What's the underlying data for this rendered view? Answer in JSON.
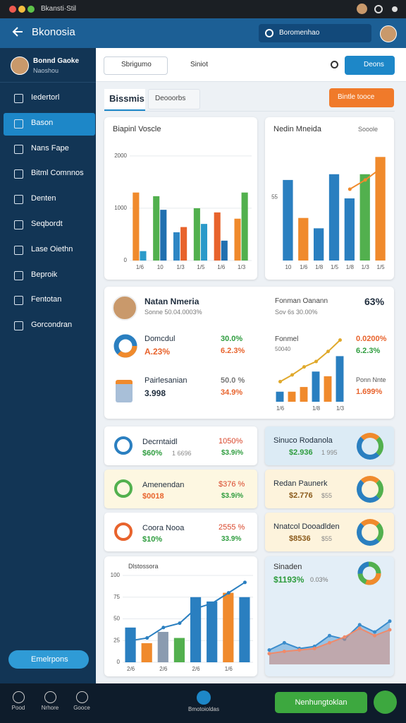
{
  "app": {
    "window_title": "Bkansti·Stil",
    "header": {
      "title": "Bkonosia",
      "search": "Boromenhao"
    },
    "user": {
      "name": "Bonnd Gaoke",
      "role": "Naoshou"
    },
    "nav": [
      "Iedertorl",
      "Bason",
      "Nans Fape",
      "Bitml Comnnos",
      "Denten",
      "Seqbordt",
      "Lase Oiethn",
      "Beproik",
      "Fentotan",
      "Gorcondran"
    ],
    "nav_footer": "Emelrpons",
    "toolbar": {
      "dropdown": "Sbrigumo",
      "filter": "Siniot",
      "button": "Deons"
    },
    "tabs": [
      "Bissmis",
      "Deooorbs"
    ],
    "action": "Bintle tooce",
    "profile": {
      "name": "Natan Nmeria",
      "subtitle": "Sonne 50.04.0003%",
      "right_label": "Fonman Oanann",
      "right_sub": "Sov 6s 30.00%",
      "right_value": "63%",
      "rows": [
        {
          "label": "Domcdul",
          "value": "A.23%",
          "a": "30.0%",
          "b": "6.2.3%"
        },
        {
          "label": "Pairlesanian",
          "value": "3.998",
          "a": "50.0 %",
          "b": "34.9%"
        }
      ],
      "chart_label": "Fonmel",
      "chart_sub": "50040",
      "chart_a": "0.0200%",
      "chart_b": "6.2.3%",
      "chart_c": "Ponn Nnte",
      "chart_d": "1.699%"
    },
    "cards": [
      {
        "title": "Decrntaidl",
        "value": "$60%",
        "sub": "1 6696",
        "r1": "1050%",
        "r2": "$3.9i%"
      },
      {
        "title": "Sinuco Rodanola",
        "value": "$2.936",
        "sub": "1 995"
      },
      {
        "title": "Amenendan",
        "value": "$0018",
        "r1": "$376 %",
        "r2": "$3.9i%"
      },
      {
        "title": "Redan Paunerk",
        "value": "$2.776",
        "sub": "$55"
      },
      {
        "title": "Coora Nooa",
        "value": "$10%",
        "r1": "2555 %",
        "r2": "33.9%"
      },
      {
        "title": "Nnatcol Dooadlden",
        "value": "$8536",
        "sub": "$55"
      }
    ],
    "bottom_right": {
      "title": "Sinaden",
      "value": "$1193%",
      "sub": "0.03%"
    },
    "footer": {
      "items": [
        "Pood",
        "Nrhore",
        "Gooce"
      ],
      "center": "Bmotoioldas",
      "button": "Nenhungtoklan"
    }
  },
  "chart_data": [
    {
      "type": "bar",
      "title": "Biapinl Voscle",
      "ylim": [
        0,
        2200
      ],
      "yticks": [
        0,
        1000,
        2000
      ],
      "grid": true,
      "categories": [
        "1/6",
        "10",
        "1/3",
        "1/5",
        "1/6",
        "1/3"
      ],
      "series": [
        {
          "colors": [
            "#f08a2c",
            "#52b04e",
            "#2d86c4",
            "#52b04e",
            "#e8632c",
            "#f08a2c"
          ],
          "values": [
            1300,
            1230,
            540,
            1000,
            920,
            800
          ]
        },
        {
          "colors": [
            "#2b9ac9",
            "#2170b0",
            "#e8632c",
            "#2b9ac9",
            "#2170b0",
            "#52b04e"
          ],
          "values": [
            180,
            970,
            640,
            700,
            380,
            1300
          ]
        }
      ]
    },
    {
      "type": "bar",
      "title": "Nedin Mneida",
      "control": "Sooole",
      "ylim": [
        0,
        100
      ],
      "yticks": [
        55
      ],
      "grid": false,
      "categories": [
        "10",
        "1/6",
        "1/8",
        "1/5",
        "1/8",
        "1/3",
        "1/5"
      ],
      "series": [
        {
          "colors": [
            "#2a7fc0",
            "#f08a2c",
            "#2a7fc0",
            "#2a7fc0",
            "#2a7fc0",
            "#52b04e",
            "#f08a2c"
          ],
          "values": [
            70,
            37,
            28,
            75,
            54,
            75,
            90
          ]
        },
        {
          "type": "line",
          "color": "#f08a2c",
          "values": [
            null,
            null,
            null,
            null,
            62,
            70,
            80
          ]
        }
      ]
    },
    {
      "type": "bar",
      "ylim": [
        0,
        100
      ],
      "grid": false,
      "categories": [
        "1/6",
        null,
        null,
        "1/8",
        null,
        "1/3"
      ],
      "series": [
        {
          "colors": [
            "#2a7fc0",
            "#f08a2c",
            "#f08a2c",
            "#2a7fc0",
            "#f08a2c",
            "#2a7fc0"
          ],
          "values": [
            15,
            15,
            22,
            45,
            38,
            68
          ]
        },
        {
          "type": "line",
          "color": "#e0a92c",
          "values": [
            30,
            40,
            52,
            60,
            75,
            92
          ]
        }
      ]
    },
    {
      "type": "bar",
      "title": "Dlstossora",
      "ylim": [
        0,
        100
      ],
      "yticks": [
        0,
        25,
        50,
        75,
        100
      ],
      "grid": true,
      "categories": [
        "2/6",
        null,
        "2/6",
        null,
        "2/6",
        null,
        "1/6",
        null
      ],
      "series": [
        {
          "colors": [
            "#2a7fc0",
            "#f08a2c",
            "#8a9bb0",
            "#52b04e",
            "#2a7fc0",
            "#2a7fc0",
            "#f08a2c",
            "#2a7fc0"
          ],
          "values": [
            40,
            22,
            35,
            28,
            75,
            70,
            80,
            75
          ]
        },
        {
          "type": "line",
          "color": "#2a7fc0",
          "values": [
            25,
            28,
            40,
            45,
            62,
            68,
            80,
            92
          ]
        }
      ]
    },
    {
      "type": "area",
      "ylim": [
        0,
        100
      ],
      "grid": false,
      "categories": [
        null,
        null,
        null,
        null,
        null,
        null,
        null,
        null,
        null
      ],
      "series": [
        {
          "color": "#3a8ccc",
          "values": [
            20,
            30,
            22,
            25,
            40,
            35,
            55,
            45,
            60
          ]
        },
        {
          "color": "#f08a6a",
          "values": [
            15,
            18,
            20,
            22,
            30,
            38,
            50,
            40,
            48
          ]
        }
      ]
    }
  ]
}
